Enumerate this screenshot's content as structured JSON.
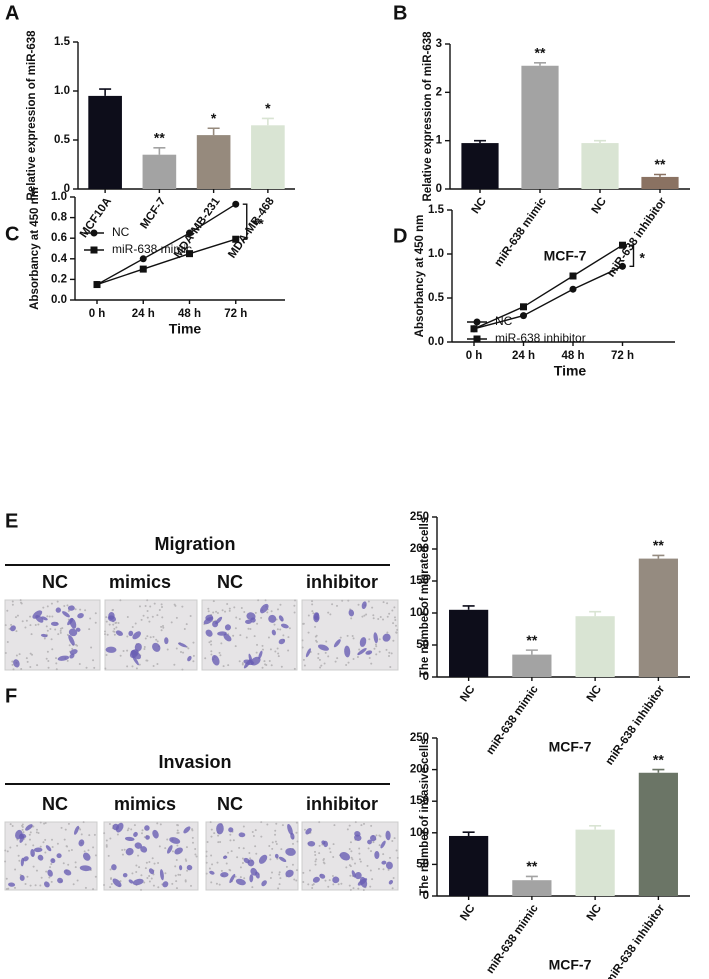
{
  "chart_data": [
    {
      "type": "bar",
      "panel": "A",
      "ylabel": "Relative expression of miR-638",
      "categories": [
        "MCF10A",
        "MCF-7",
        "MDA-MB-231",
        "MDA-MB-468"
      ],
      "values": [
        0.95,
        0.35,
        0.55,
        0.65
      ],
      "errors": [
        0.07,
        0.07,
        0.07,
        0.07
      ],
      "annotations": [
        null,
        "**",
        "*",
        "*"
      ],
      "colors": [
        "#0d0d1a",
        "#a3a3a3",
        "#968a7d",
        "#d9e4d3"
      ],
      "ylim": [
        0,
        1.5
      ],
      "yticks": [
        0,
        0.5,
        {
          "value": 1,
          "label": "1.0"
        },
        1.5
      ]
    },
    {
      "type": "bar",
      "panel": "B",
      "ylabel": "Relative expression of miR-638",
      "xlabel": "MCF-7",
      "categories": [
        "NC",
        "miR-638 mimic",
        "NC",
        "miR-638 inhibitor"
      ],
      "values": [
        0.95,
        2.55,
        0.95,
        0.25
      ],
      "errors": [
        0.05,
        0.06,
        0.05,
        0.05
      ],
      "annotations": [
        null,
        "**",
        null,
        "**"
      ],
      "colors": [
        "#0d0d1a",
        "#a3a3a3",
        "#d9e4d3",
        "#8a7262"
      ],
      "ylim": [
        0,
        3
      ],
      "yticks": [
        0,
        1,
        2,
        3
      ]
    },
    {
      "type": "line",
      "panel": "C",
      "ylabel": "Absorbancy at 450 nm",
      "xlabel": "Time",
      "categories": [
        "0 h",
        "24 h",
        "48 h",
        "72 h"
      ],
      "series": [
        {
          "name": "NC",
          "color": "#111111",
          "marker": "circle",
          "values": [
            0.15,
            0.4,
            0.65,
            0.93
          ]
        },
        {
          "name": "miR-638 mimic",
          "color": "#111111",
          "marker": "square",
          "values": [
            0.15,
            0.3,
            0.45,
            0.59
          ]
        }
      ],
      "annotation": "**",
      "ylim": [
        0,
        1
      ],
      "yticks": [
        {
          "value": 0,
          "label": "0.0"
        },
        0.2,
        0.4,
        0.6,
        0.8,
        {
          "value": 1,
          "label": "1.0"
        }
      ]
    },
    {
      "type": "line",
      "panel": "D",
      "ylabel": "Absorbancy at 450 nm",
      "xlabel": "Time",
      "categories": [
        "0 h",
        "24 h",
        "48 h",
        "72 h"
      ],
      "series": [
        {
          "name": "NC",
          "color": "#111111",
          "marker": "circle",
          "values": [
            0.15,
            0.3,
            0.6,
            0.86
          ]
        },
        {
          "name": "miR-638 inhibitor",
          "color": "#111111",
          "marker": "square",
          "values": [
            0.15,
            0.4,
            0.75,
            1.1
          ]
        }
      ],
      "annotation": "*",
      "ylim": [
        0,
        1.5
      ],
      "yticks": [
        {
          "value": 0,
          "label": "0.0"
        },
        0.5,
        {
          "value": 1,
          "label": "1.0"
        },
        1.5
      ]
    },
    {
      "type": "bar",
      "ylabel": "The number of migrated cells",
      "xlabel": "MCF-7",
      "categories": [
        "NC",
        "miR-638 mimic",
        "NC",
        "miR-638 inhibitor"
      ],
      "values": [
        105,
        35,
        95,
        185
      ],
      "errors": [
        6,
        7,
        7,
        5
      ],
      "annotations": [
        null,
        "**",
        null,
        "**"
      ],
      "colors": [
        "#0d0d1a",
        "#a3a3a3",
        "#d9e4d3",
        "#958b80"
      ],
      "ylim": [
        0,
        250
      ],
      "yticks": [
        0,
        50,
        100,
        150,
        200,
        250
      ]
    },
    {
      "type": "bar",
      "ylabel": "The number of invasive cells",
      "xlabel": "MCF-7",
      "categories": [
        "NC",
        "miR-638 mimic",
        "NC",
        "miR-638 inhibitor"
      ],
      "values": [
        95,
        25,
        105,
        195
      ],
      "errors": [
        6,
        6,
        6,
        5
      ],
      "annotations": [
        null,
        "**",
        null,
        "**"
      ],
      "colors": [
        "#0d0d1a",
        "#a3a3a3",
        "#d9e4d3",
        "#6b7566"
      ],
      "ylim": [
        0,
        250
      ],
      "yticks": [
        0,
        50,
        100,
        150,
        200,
        250
      ]
    }
  ],
  "micrographs": [
    {
      "panel": "E",
      "title": "Migration",
      "labels": [
        "NC",
        "mimics",
        "NC",
        "inhibitor"
      ]
    },
    {
      "panel": "F",
      "title": "Invasion",
      "labels": [
        "NC",
        "mimics",
        "NC",
        "inhibitor"
      ]
    }
  ]
}
